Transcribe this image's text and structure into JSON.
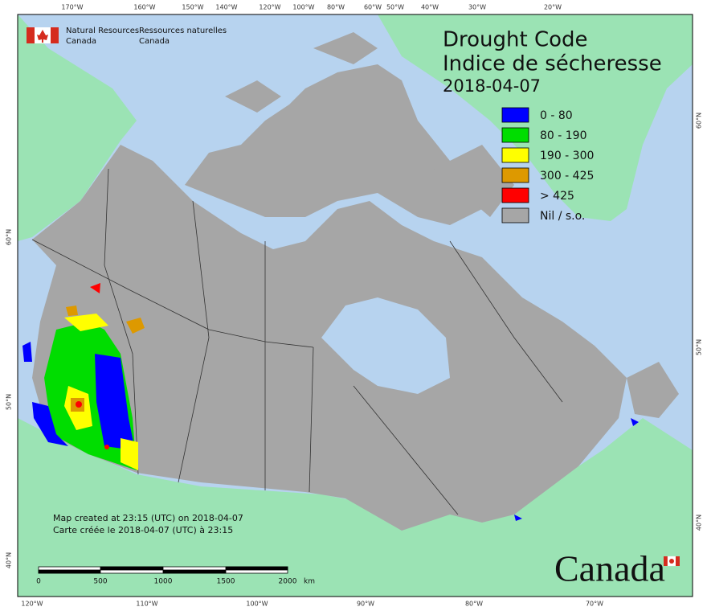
{
  "header": {
    "org_en": [
      "Natural Resources",
      "Canada"
    ],
    "org_fr": [
      "Ressources naturelles",
      "Canada"
    ]
  },
  "title": {
    "en": "Drought Code",
    "fr": "Indice de sécheresse",
    "date": "2018-04-07"
  },
  "legend": [
    {
      "label": "0 - 80",
      "color": "#0000ff"
    },
    {
      "label": "80 - 190",
      "color": "#00dd00"
    },
    {
      "label": "190 - 300",
      "color": "#ffff00"
    },
    {
      "label": "300 - 425",
      "color": "#dd9900"
    },
    {
      "label": "> 425",
      "color": "#ff0000"
    },
    {
      "label": "Nil / s.o.",
      "color": "#a6a6a6"
    }
  ],
  "graticule": {
    "top": [
      "170°W",
      "160°W",
      "150°W",
      "140°W",
      "120°W",
      "100°W",
      "80°W",
      "60°W",
      "50°W",
      "40°W",
      "30°W",
      "20°W"
    ],
    "bottom": [
      "120°W",
      "110°W",
      "100°W",
      "90°W",
      "80°W",
      "70°W"
    ],
    "left": [
      "60°N",
      "50°N",
      "40°N"
    ],
    "right": [
      "60°N",
      "50°N",
      "40°N"
    ]
  },
  "footer": {
    "created_en": "Map created at 23:15 (UTC) on 2018-04-07",
    "created_fr": "Carte créée le 2018-04-07 (UTC) à 23:15"
  },
  "scale_bar": {
    "labels": [
      "0",
      "500",
      "1000",
      "1500",
      "2000"
    ],
    "unit": "km"
  },
  "wordmark": "Canada"
}
